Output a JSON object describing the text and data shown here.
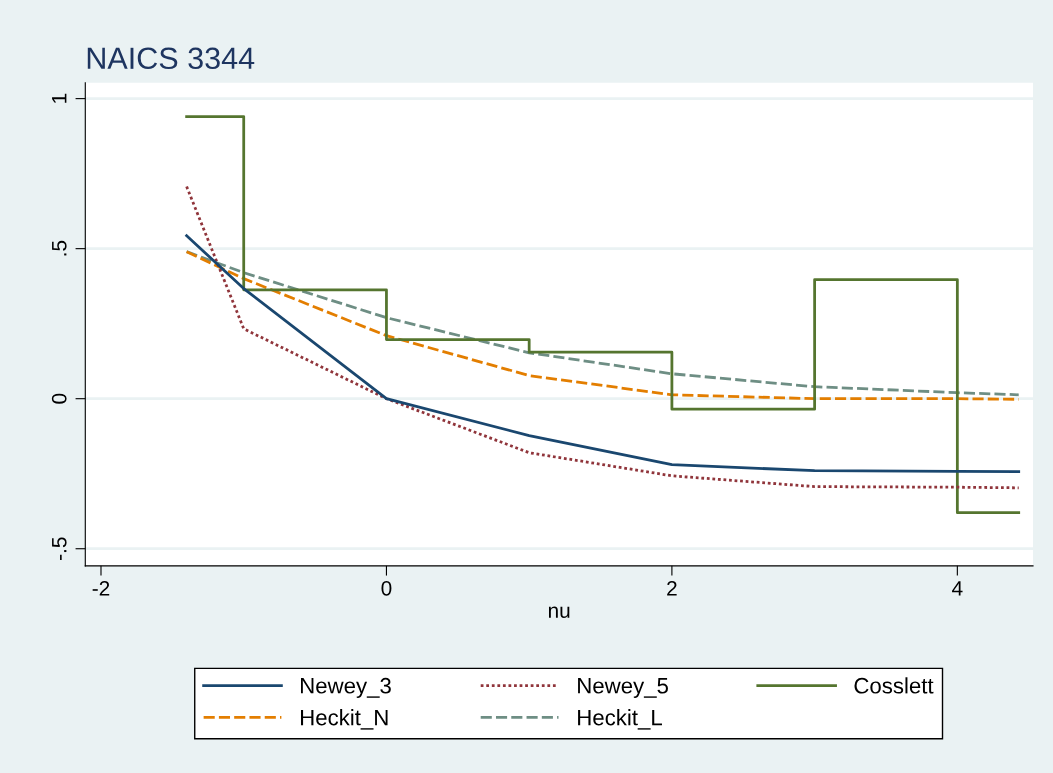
{
  "chart_data": {
    "type": "line",
    "title": "NAICS 3344",
    "xlabel": "nu",
    "xlim": [
      -2.11,
      4.53
    ],
    "ylim": [
      -0.557,
      1.053
    ],
    "xticks": [
      -2,
      0,
      2,
      4
    ],
    "yticks": [
      {
        "value": -0.5,
        "label": "-.5"
      },
      {
        "value": 0,
        "label": "0"
      },
      {
        "value": 0.5,
        "label": ".5"
      },
      {
        "value": 1,
        "label": "1"
      }
    ],
    "grid": "y",
    "legend": "bottom",
    "series": [
      {
        "name": "Newey_3",
        "color": "#1a476f",
        "line_style": "solid",
        "x": [
          -1.4,
          -1,
          0,
          1,
          2,
          3,
          4,
          4.43
        ],
        "values": [
          0.543,
          0.367,
          0.0,
          -0.123,
          -0.22,
          -0.24,
          -0.242,
          -0.243
        ]
      },
      {
        "name": "Newey_5",
        "color": "#90353b",
        "line_style": "dotted",
        "x": [
          -1.4,
          -1,
          0,
          1,
          2,
          3,
          4,
          4.43
        ],
        "values": [
          0.707,
          0.233,
          0.0,
          -0.18,
          -0.257,
          -0.293,
          -0.295,
          -0.297
        ]
      },
      {
        "name": "Cosslett",
        "color": "#55752f",
        "line_style": "solid",
        "type": "step",
        "x": [
          -1.4,
          -1,
          0,
          1,
          2,
          3,
          4,
          4.43
        ],
        "values": [
          0.94,
          0.363,
          0.197,
          0.155,
          -0.035,
          0.397,
          -0.38,
          -0.38
        ]
      },
      {
        "name": "Heckit_N",
        "color": "#e37e00",
        "line_style": "dashed",
        "x": [
          -1.4,
          -1,
          0,
          1,
          2,
          3,
          4,
          4.43
        ],
        "values": [
          0.49,
          0.4,
          0.21,
          0.077,
          0.013,
          0.0,
          0.0,
          -0.002
        ]
      },
      {
        "name": "Heckit_L",
        "color": "#6e8e84",
        "line_style": "dashed",
        "x": [
          -1.4,
          -1,
          0,
          1,
          2,
          3,
          4,
          4.43
        ],
        "values": [
          0.49,
          0.42,
          0.27,
          0.153,
          0.083,
          0.04,
          0.02,
          0.013
        ]
      }
    ]
  }
}
